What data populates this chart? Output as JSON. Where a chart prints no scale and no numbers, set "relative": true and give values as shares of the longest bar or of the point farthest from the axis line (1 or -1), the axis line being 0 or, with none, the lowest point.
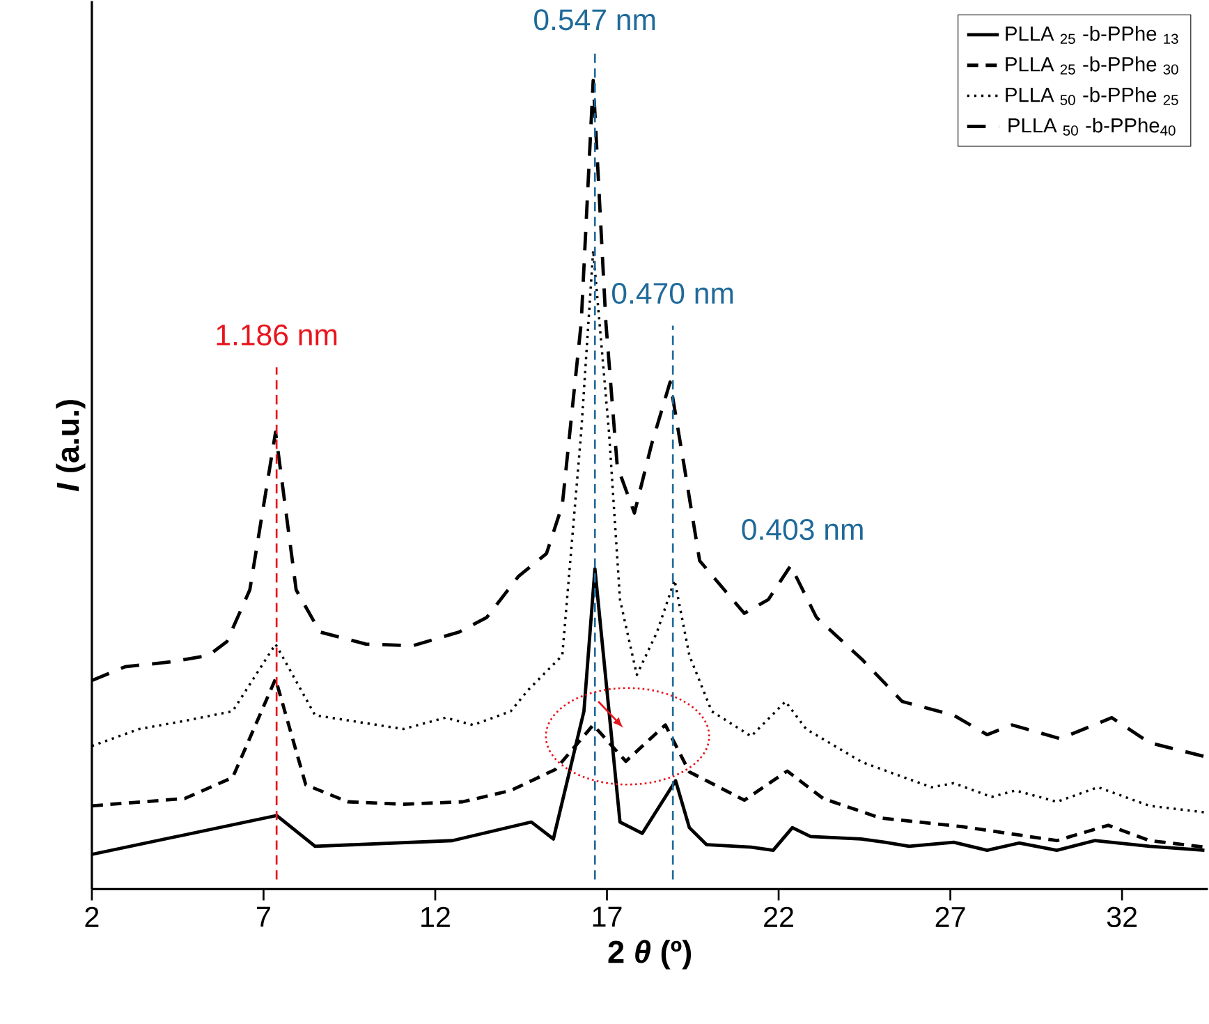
{
  "chart_data": {
    "type": "line",
    "relative": true,
    "xlabel": "2 *θ* (º)",
    "ylabel": "*I* (a.u.)",
    "xlim": [
      2,
      34.5
    ],
    "xticks": [
      2,
      7,
      12,
      17,
      22,
      27,
      32
    ],
    "legend": "top right",
    "series": [
      {
        "name": "PLLA $_{25}$ -b-PPhe $_{13}$",
        "color": "#000000",
        "line_style": "solid",
        "x": [
          2,
          7.38,
          8.5,
          12.5,
          14.8,
          15.44,
          16.33,
          16.65,
          17.06,
          17.38,
          18.03,
          19.0,
          19.4,
          19.9,
          21.2,
          21.84,
          22.4,
          22.93,
          24.4,
          25.1,
          25.8,
          27.1,
          28.07,
          29.0,
          30.1,
          31.2,
          32.8,
          34.4
        ],
        "values": [
          0.043,
          0.091,
          0.053,
          0.06,
          0.083,
          0.062,
          0.22,
          0.396,
          0.22,
          0.083,
          0.069,
          0.134,
          0.076,
          0.055,
          0.052,
          0.048,
          0.076,
          0.065,
          0.062,
          0.058,
          0.053,
          0.058,
          0.048,
          0.057,
          0.048,
          0.06,
          0.053,
          0.048
        ]
      },
      {
        "name": "PLLA $_{25}$ -b-PPhe $_{30}$",
        "color": "#000000",
        "line_style": "dashed",
        "x": [
          2,
          4.7,
          6.1,
          7.35,
          8.23,
          9.45,
          11.07,
          12.8,
          14.2,
          15.5,
          16.6,
          17.55,
          18.7,
          19.4,
          21.0,
          22.25,
          23.3,
          24.96,
          27.4,
          30.1,
          31.6,
          32.8,
          34.4
        ],
        "values": [
          0.103,
          0.112,
          0.138,
          0.26,
          0.129,
          0.108,
          0.105,
          0.108,
          0.122,
          0.148,
          0.203,
          0.158,
          0.203,
          0.145,
          0.11,
          0.146,
          0.112,
          0.088,
          0.077,
          0.06,
          0.079,
          0.06,
          0.052
        ]
      },
      {
        "name": "PLLA $_{50}$ -b-PPhe $_{25}$",
        "color": "#000000",
        "line_style": "dotted",
        "x": [
          2,
          3.38,
          4.7,
          6.1,
          7.35,
          8.5,
          11.07,
          12.3,
          13.1,
          14.2,
          14.7,
          15.7,
          16.25,
          16.6,
          17.06,
          17.38,
          17.87,
          18.45,
          18.97,
          19.4,
          20.05,
          21.2,
          22.2,
          22.8,
          24.43,
          26.45,
          27.1,
          28.2,
          28.9,
          30.1,
          31.3,
          32.8,
          34.4
        ],
        "values": [
          0.177,
          0.198,
          0.208,
          0.22,
          0.303,
          0.215,
          0.198,
          0.212,
          0.203,
          0.22,
          0.246,
          0.289,
          0.565,
          0.79,
          0.565,
          0.358,
          0.265,
          0.317,
          0.382,
          0.289,
          0.22,
          0.189,
          0.232,
          0.198,
          0.157,
          0.126,
          0.131,
          0.114,
          0.122,
          0.108,
          0.126,
          0.103,
          0.095
        ]
      },
      {
        "name": "PLLA $_{50}$ -b-PPhe$_{40}$",
        "color": "#000000",
        "line_style": "dashed",
        "x": [
          2,
          2.97,
          4.3,
          5.4,
          5.93,
          6.6,
          7.35,
          7.95,
          8.64,
          9.98,
          11.35,
          12.7,
          13.5,
          14.43,
          15.24,
          15.7,
          16.25,
          16.6,
          16.97,
          17.3,
          17.8,
          18.3,
          18.84,
          19.25,
          19.7,
          21.0,
          21.7,
          22.35,
          23.1,
          24.43,
          25.6,
          27.1,
          28.07,
          28.8,
          30.2,
          31.7,
          32.8,
          34.4
        ],
        "values": [
          0.258,
          0.275,
          0.281,
          0.289,
          0.306,
          0.37,
          0.565,
          0.37,
          0.318,
          0.303,
          0.301,
          0.318,
          0.336,
          0.387,
          0.415,
          0.475,
          0.7,
          1.0,
          0.7,
          0.523,
          0.465,
          0.55,
          0.627,
          0.523,
          0.406,
          0.341,
          0.358,
          0.4,
          0.336,
          0.284,
          0.232,
          0.215,
          0.191,
          0.203,
          0.186,
          0.212,
          0.181,
          0.164
        ]
      }
    ],
    "ref_lines": [
      {
        "axis": "x",
        "value": 7.38,
        "label": "1.186 nm",
        "color": "#e8141c",
        "line_style": "dashed"
      },
      {
        "axis": "x",
        "value": 16.65,
        "label": "0.547 nm",
        "color": "#1f6a9a",
        "line_style": "dashed"
      },
      {
        "axis": "x",
        "value": 18.92,
        "label": "0.470 nm",
        "color": "#1f6a9a",
        "line_style": "dashed"
      }
    ],
    "annotations": [
      "0.403 nm"
    ]
  }
}
